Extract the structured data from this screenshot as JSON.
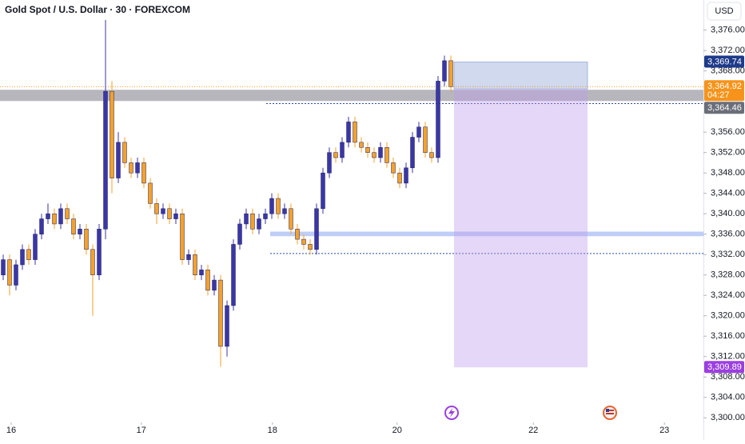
{
  "chart_data": {
    "type": "candlestick",
    "title": "Gold Spot / U.S. Dollar · 30 · FOREXCOM",
    "currency": "USD",
    "countdown": "04:27",
    "up_color": "#3b36a6",
    "down_color": "#f5a128",
    "open": [
      3328,
      3331,
      3326,
      3330,
      3333,
      3331,
      3336,
      3339,
      3340,
      3338,
      3341,
      3339,
      3336,
      3337,
      3333,
      3328,
      3337,
      3364,
      3347,
      3354,
      3350,
      3348,
      3350,
      3346,
      3342,
      3340,
      3341,
      3339,
      3340,
      3331,
      3332,
      3328,
      3329,
      3325,
      3327,
      3314,
      3322,
      3334,
      3338,
      3340,
      3337,
      3339,
      3340,
      3343,
      3340,
      3341,
      3337,
      3335,
      3334,
      3333,
      3341,
      3348,
      3352,
      3351,
      3354,
      3358,
      3354,
      3353,
      3352,
      3351,
      3353,
      3350,
      3348,
      3346,
      3349,
      3355,
      3357,
      3352,
      3351,
      3366,
      3370
    ],
    "high": [
      3332,
      3332,
      3331,
      3334,
      3334,
      3337,
      3340,
      3342,
      3341,
      3342,
      3342,
      3340,
      3338,
      3338,
      3334,
      3338,
      3378,
      3366,
      3356,
      3355,
      3351,
      3351,
      3351,
      3347,
      3343,
      3342,
      3342,
      3341,
      3341,
      3333,
      3333,
      3330,
      3330,
      3328,
      3328,
      3323,
      3335,
      3339,
      3341,
      3341,
      3340,
      3341,
      3344,
      3344,
      3342,
      3342,
      3338,
      3336,
      3335,
      3342,
      3349,
      3353,
      3353,
      3355,
      3359,
      3359,
      3355,
      3354,
      3353,
      3354,
      3354,
      3351,
      3349,
      3350,
      3356,
      3358,
      3358,
      3353,
      3367,
      3371,
      3371
    ],
    "low": [
      3327,
      3324,
      3325,
      3329,
      3330,
      3330,
      3335,
      3338,
      3337,
      3337,
      3338,
      3335,
      3335,
      3332,
      3320,
      3327,
      3335,
      3344,
      3346,
      3349,
      3347,
      3347,
      3345,
      3341,
      3338,
      3339,
      3338,
      3338,
      3330,
      3330,
      3327,
      3327,
      3324,
      3324,
      3310,
      3312,
      3321,
      3333,
      3337,
      3336,
      3336,
      3338,
      3339,
      3339,
      3339,
      3336,
      3334,
      3333,
      3332,
      3332,
      3340,
      3347,
      3350,
      3350,
      3353,
      3353,
      3352,
      3351,
      3350,
      3350,
      3349,
      3347,
      3345,
      3345,
      3348,
      3354,
      3351,
      3350,
      3350,
      3365,
      3364
    ],
    "close": [
      3331,
      3326,
      3330,
      3333,
      3331,
      3336,
      3339,
      3340,
      3338,
      3341,
      3339,
      3336,
      3337,
      3333,
      3328,
      3337,
      3364,
      3347,
      3354,
      3350,
      3348,
      3350,
      3346,
      3342,
      3340,
      3341,
      3339,
      3340,
      3331,
      3332,
      3328,
      3329,
      3325,
      3327,
      3314,
      3322,
      3334,
      3338,
      3340,
      3337,
      3339,
      3340,
      3343,
      3340,
      3341,
      3337,
      3335,
      3334,
      3333,
      3341,
      3348,
      3352,
      3351,
      3354,
      3358,
      3354,
      3353,
      3352,
      3351,
      3353,
      3350,
      3348,
      3346,
      3349,
      3355,
      3357,
      3352,
      3351,
      3366,
      3370,
      3364.92
    ],
    "xlim": [
      -0.5,
      109.5
    ],
    "xticks": [
      {
        "value": 1.25,
        "label": "16"
      },
      {
        "value": 21.6,
        "label": "17"
      },
      {
        "value": 42.1,
        "label": "18"
      },
      {
        "value": 61.6,
        "label": "20"
      },
      {
        "value": 82.9,
        "label": "22"
      },
      {
        "value": 103.4,
        "label": "23"
      }
    ],
    "ylim": [
      3299.1,
      3381.9
    ],
    "yticks": [
      {
        "value": 3376,
        "label": "3,376.00"
      },
      {
        "value": 3372,
        "label": "3,372.00"
      },
      {
        "value": 3368,
        "label": "3,368.00"
      },
      {
        "value": 3356,
        "label": "3,356.00"
      },
      {
        "value": 3352,
        "label": "3,352.00"
      },
      {
        "value": 3348,
        "label": "3,348.00"
      },
      {
        "value": 3344,
        "label": "3,344.00"
      },
      {
        "value": 3340,
        "label": "3,340.00"
      },
      {
        "value": 3336,
        "label": "3,336.00"
      },
      {
        "value": 3332,
        "label": "3,332.00"
      },
      {
        "value": 3328,
        "label": "3,328.00"
      },
      {
        "value": 3324,
        "label": "3,324.00"
      },
      {
        "value": 3320,
        "label": "3,320.00"
      },
      {
        "value": 3316,
        "label": "3,316.00"
      },
      {
        "value": 3312,
        "label": "3,312.00"
      },
      {
        "value": 3308,
        "label": "3,308.00"
      },
      {
        "value": 3304,
        "label": "3,304.00"
      },
      {
        "value": 3300,
        "label": "3,300.00"
      }
    ],
    "price_labels": [
      {
        "value": 3369.74,
        "label": "3,369.74",
        "color": "#1e3a8a"
      },
      {
        "value": 3364.92,
        "label": "3,364.92",
        "color": "#f7931a"
      },
      {
        "value": 3364.46,
        "label": "3,364.46",
        "color": "#6b6e78"
      },
      {
        "value": 3309.89,
        "label": "3,309.89",
        "color": "#9b3fe0"
      }
    ],
    "zones": [
      {
        "low": 3362.1,
        "high": 3364.3,
        "color": "#9e9ea6"
      },
      {
        "low": 3335.6,
        "high": 3336.5,
        "color": "#a9bdf5"
      }
    ],
    "dotted_levels": [
      3361.6,
      3332.2
    ],
    "position": {
      "stop": 3369.74,
      "entry": 3364.46,
      "target": 3309.89
    }
  }
}
